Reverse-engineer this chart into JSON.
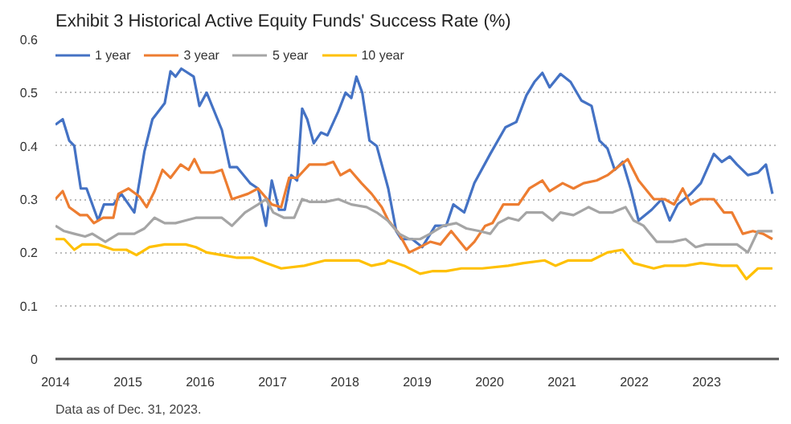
{
  "chart_data": {
    "type": "line",
    "title": "Exhibit 3  Historical Active Equity Funds' Success Rate (%)",
    "annotations": [
      "Data as of Dec. 31, 2023."
    ],
    "xlim": [
      2014,
      2024
    ],
    "xticks": [
      2014,
      2015,
      2016,
      2017,
      2018,
      2019,
      2020,
      2021,
      2022,
      2023
    ],
    "ylim": [
      0,
      0.6
    ],
    "yticks": [
      0,
      0.1,
      0.2,
      0.3,
      0.4,
      0.5,
      0.6
    ],
    "grid": "y",
    "legend": "top left",
    "line_style": "solid",
    "series": [
      {
        "name": "1 year",
        "color": "#4472c4",
        "x": [
          2014.0,
          2014.1,
          2014.19,
          2014.26,
          2014.35,
          2014.43,
          2014.59,
          2014.67,
          2014.8,
          2014.91,
          2015.09,
          2015.23,
          2015.34,
          2015.51,
          2015.59,
          2015.66,
          2015.74,
          2015.91,
          2015.99,
          2016.09,
          2016.3,
          2016.41,
          2016.51,
          2016.69,
          2016.8,
          2016.91,
          2016.99,
          2017.09,
          2017.17,
          2017.26,
          2017.34,
          2017.41,
          2017.48,
          2017.57,
          2017.67,
          2017.76,
          2017.91,
          2018.01,
          2018.09,
          2018.16,
          2018.24,
          2018.34,
          2018.44,
          2018.6,
          2018.71,
          2018.78,
          2018.93,
          2019.07,
          2019.25,
          2019.4,
          2019.5,
          2019.65,
          2019.79,
          2020.01,
          2020.22,
          2020.37,
          2020.51,
          2020.62,
          2020.73,
          2020.83,
          2020.98,
          2021.12,
          2021.27,
          2021.41,
          2021.52,
          2021.63,
          2021.73,
          2021.84,
          2021.95,
          2022.06,
          2022.24,
          2022.38,
          2022.49,
          2022.6,
          2022.78,
          2022.92,
          2023.1,
          2023.21,
          2023.32,
          2023.42,
          2023.57,
          2023.71,
          2023.82,
          2023.91
        ],
        "values": [
          0.44,
          0.45,
          0.41,
          0.4,
          0.32,
          0.32,
          0.26,
          0.29,
          0.29,
          0.31,
          0.275,
          0.39,
          0.45,
          0.48,
          0.54,
          0.53,
          0.545,
          0.53,
          0.475,
          0.5,
          0.43,
          0.36,
          0.36,
          0.33,
          0.32,
          0.25,
          0.335,
          0.28,
          0.28,
          0.345,
          0.335,
          0.47,
          0.45,
          0.405,
          0.425,
          0.42,
          0.465,
          0.5,
          0.49,
          0.53,
          0.5,
          0.41,
          0.4,
          0.32,
          0.24,
          0.225,
          0.225,
          0.21,
          0.25,
          0.25,
          0.29,
          0.275,
          0.33,
          0.385,
          0.435,
          0.445,
          0.495,
          0.52,
          0.537,
          0.51,
          0.535,
          0.52,
          0.485,
          0.475,
          0.41,
          0.395,
          0.355,
          0.37,
          0.32,
          0.26,
          0.28,
          0.3,
          0.26,
          0.29,
          0.31,
          0.33,
          0.385,
          0.37,
          0.38,
          0.365,
          0.345,
          0.35,
          0.365,
          0.31
        ]
      },
      {
        "name": "3 year",
        "color": "#ed7d31",
        "x": [
          2014.0,
          2014.1,
          2014.19,
          2014.34,
          2014.44,
          2014.53,
          2014.66,
          2014.8,
          2014.87,
          2015.01,
          2015.16,
          2015.26,
          2015.37,
          2015.48,
          2015.59,
          2015.73,
          2015.84,
          2015.92,
          2016.01,
          2016.19,
          2016.3,
          2016.44,
          2016.66,
          2016.8,
          2016.99,
          2017.12,
          2017.23,
          2017.34,
          2017.51,
          2017.73,
          2017.84,
          2017.94,
          2018.07,
          2018.23,
          2018.37,
          2018.51,
          2018.6,
          2018.75,
          2018.89,
          2019.04,
          2019.18,
          2019.32,
          2019.47,
          2019.68,
          2019.79,
          2019.94,
          2020.04,
          2020.19,
          2020.4,
          2020.55,
          2020.73,
          2020.83,
          2021.01,
          2021.16,
          2021.3,
          2021.48,
          2021.63,
          2021.77,
          2021.91,
          2022.06,
          2022.27,
          2022.42,
          2022.55,
          2022.67,
          2022.78,
          2022.92,
          2023.1,
          2023.24,
          2023.35,
          2023.5,
          2023.64,
          2023.78,
          2023.91
        ],
        "values": [
          0.3,
          0.315,
          0.285,
          0.27,
          0.27,
          0.255,
          0.265,
          0.265,
          0.31,
          0.32,
          0.305,
          0.285,
          0.315,
          0.355,
          0.34,
          0.365,
          0.355,
          0.375,
          0.35,
          0.35,
          0.355,
          0.3,
          0.31,
          0.32,
          0.29,
          0.285,
          0.34,
          0.34,
          0.365,
          0.365,
          0.37,
          0.345,
          0.355,
          0.33,
          0.31,
          0.285,
          0.26,
          0.235,
          0.2,
          0.21,
          0.22,
          0.215,
          0.24,
          0.205,
          0.22,
          0.25,
          0.255,
          0.29,
          0.29,
          0.32,
          0.335,
          0.315,
          0.33,
          0.32,
          0.33,
          0.335,
          0.345,
          0.36,
          0.375,
          0.335,
          0.3,
          0.3,
          0.29,
          0.32,
          0.29,
          0.3,
          0.3,
          0.275,
          0.275,
          0.235,
          0.24,
          0.235,
          0.225
        ]
      },
      {
        "name": "5 year",
        "color": "#a5a5a5",
        "x": [
          2014.0,
          2014.12,
          2014.26,
          2014.41,
          2014.51,
          2014.69,
          2014.87,
          2015.09,
          2015.23,
          2015.37,
          2015.51,
          2015.66,
          2015.8,
          2015.94,
          2016.09,
          2016.3,
          2016.44,
          2016.62,
          2016.8,
          2016.91,
          2017.01,
          2017.16,
          2017.3,
          2017.41,
          2017.51,
          2017.73,
          2017.91,
          2018.09,
          2018.3,
          2018.44,
          2018.59,
          2018.75,
          2018.89,
          2019.04,
          2019.18,
          2019.36,
          2019.54,
          2019.68,
          2019.86,
          2020.01,
          2020.12,
          2020.26,
          2020.4,
          2020.51,
          2020.73,
          2020.87,
          2020.98,
          2021.16,
          2021.37,
          2021.52,
          2021.7,
          2021.88,
          2021.99,
          2022.13,
          2022.31,
          2022.53,
          2022.71,
          2022.85,
          2022.99,
          2023.21,
          2023.42,
          2023.57,
          2023.71,
          2023.91
        ],
        "values": [
          0.25,
          0.24,
          0.235,
          0.23,
          0.235,
          0.22,
          0.235,
          0.235,
          0.245,
          0.265,
          0.255,
          0.255,
          0.26,
          0.265,
          0.265,
          0.265,
          0.25,
          0.275,
          0.29,
          0.3,
          0.275,
          0.265,
          0.265,
          0.3,
          0.295,
          0.295,
          0.3,
          0.29,
          0.285,
          0.275,
          0.26,
          0.235,
          0.225,
          0.225,
          0.235,
          0.25,
          0.255,
          0.245,
          0.24,
          0.235,
          0.255,
          0.265,
          0.26,
          0.275,
          0.275,
          0.26,
          0.275,
          0.27,
          0.285,
          0.275,
          0.275,
          0.285,
          0.26,
          0.25,
          0.22,
          0.22,
          0.225,
          0.21,
          0.215,
          0.215,
          0.215,
          0.2,
          0.24,
          0.24
        ]
      },
      {
        "name": "10 year",
        "color": "#ffc000",
        "x": [
          2014.0,
          2014.12,
          2014.26,
          2014.37,
          2014.59,
          2014.8,
          2014.98,
          2015.12,
          2015.3,
          2015.51,
          2015.8,
          2015.94,
          2016.09,
          2016.3,
          2016.51,
          2016.73,
          2016.91,
          2017.12,
          2017.44,
          2017.73,
          2018.01,
          2018.19,
          2018.37,
          2018.55,
          2018.6,
          2018.82,
          2019.04,
          2019.22,
          2019.4,
          2019.61,
          2019.9,
          2020.26,
          2020.47,
          2020.76,
          2020.91,
          2021.09,
          2021.41,
          2021.63,
          2021.84,
          2021.99,
          2022.27,
          2022.42,
          2022.71,
          2022.92,
          2023.21,
          2023.42,
          2023.55,
          2023.71,
          2023.91
        ],
        "values": [
          0.225,
          0.225,
          0.205,
          0.215,
          0.215,
          0.205,
          0.205,
          0.195,
          0.21,
          0.215,
          0.215,
          0.21,
          0.2,
          0.195,
          0.19,
          0.19,
          0.18,
          0.17,
          0.175,
          0.185,
          0.185,
          0.185,
          0.175,
          0.18,
          0.185,
          0.175,
          0.16,
          0.165,
          0.165,
          0.17,
          0.17,
          0.175,
          0.18,
          0.185,
          0.175,
          0.185,
          0.185,
          0.2,
          0.205,
          0.18,
          0.17,
          0.175,
          0.175,
          0.18,
          0.175,
          0.175,
          0.15,
          0.17,
          0.17
        ]
      }
    ]
  }
}
